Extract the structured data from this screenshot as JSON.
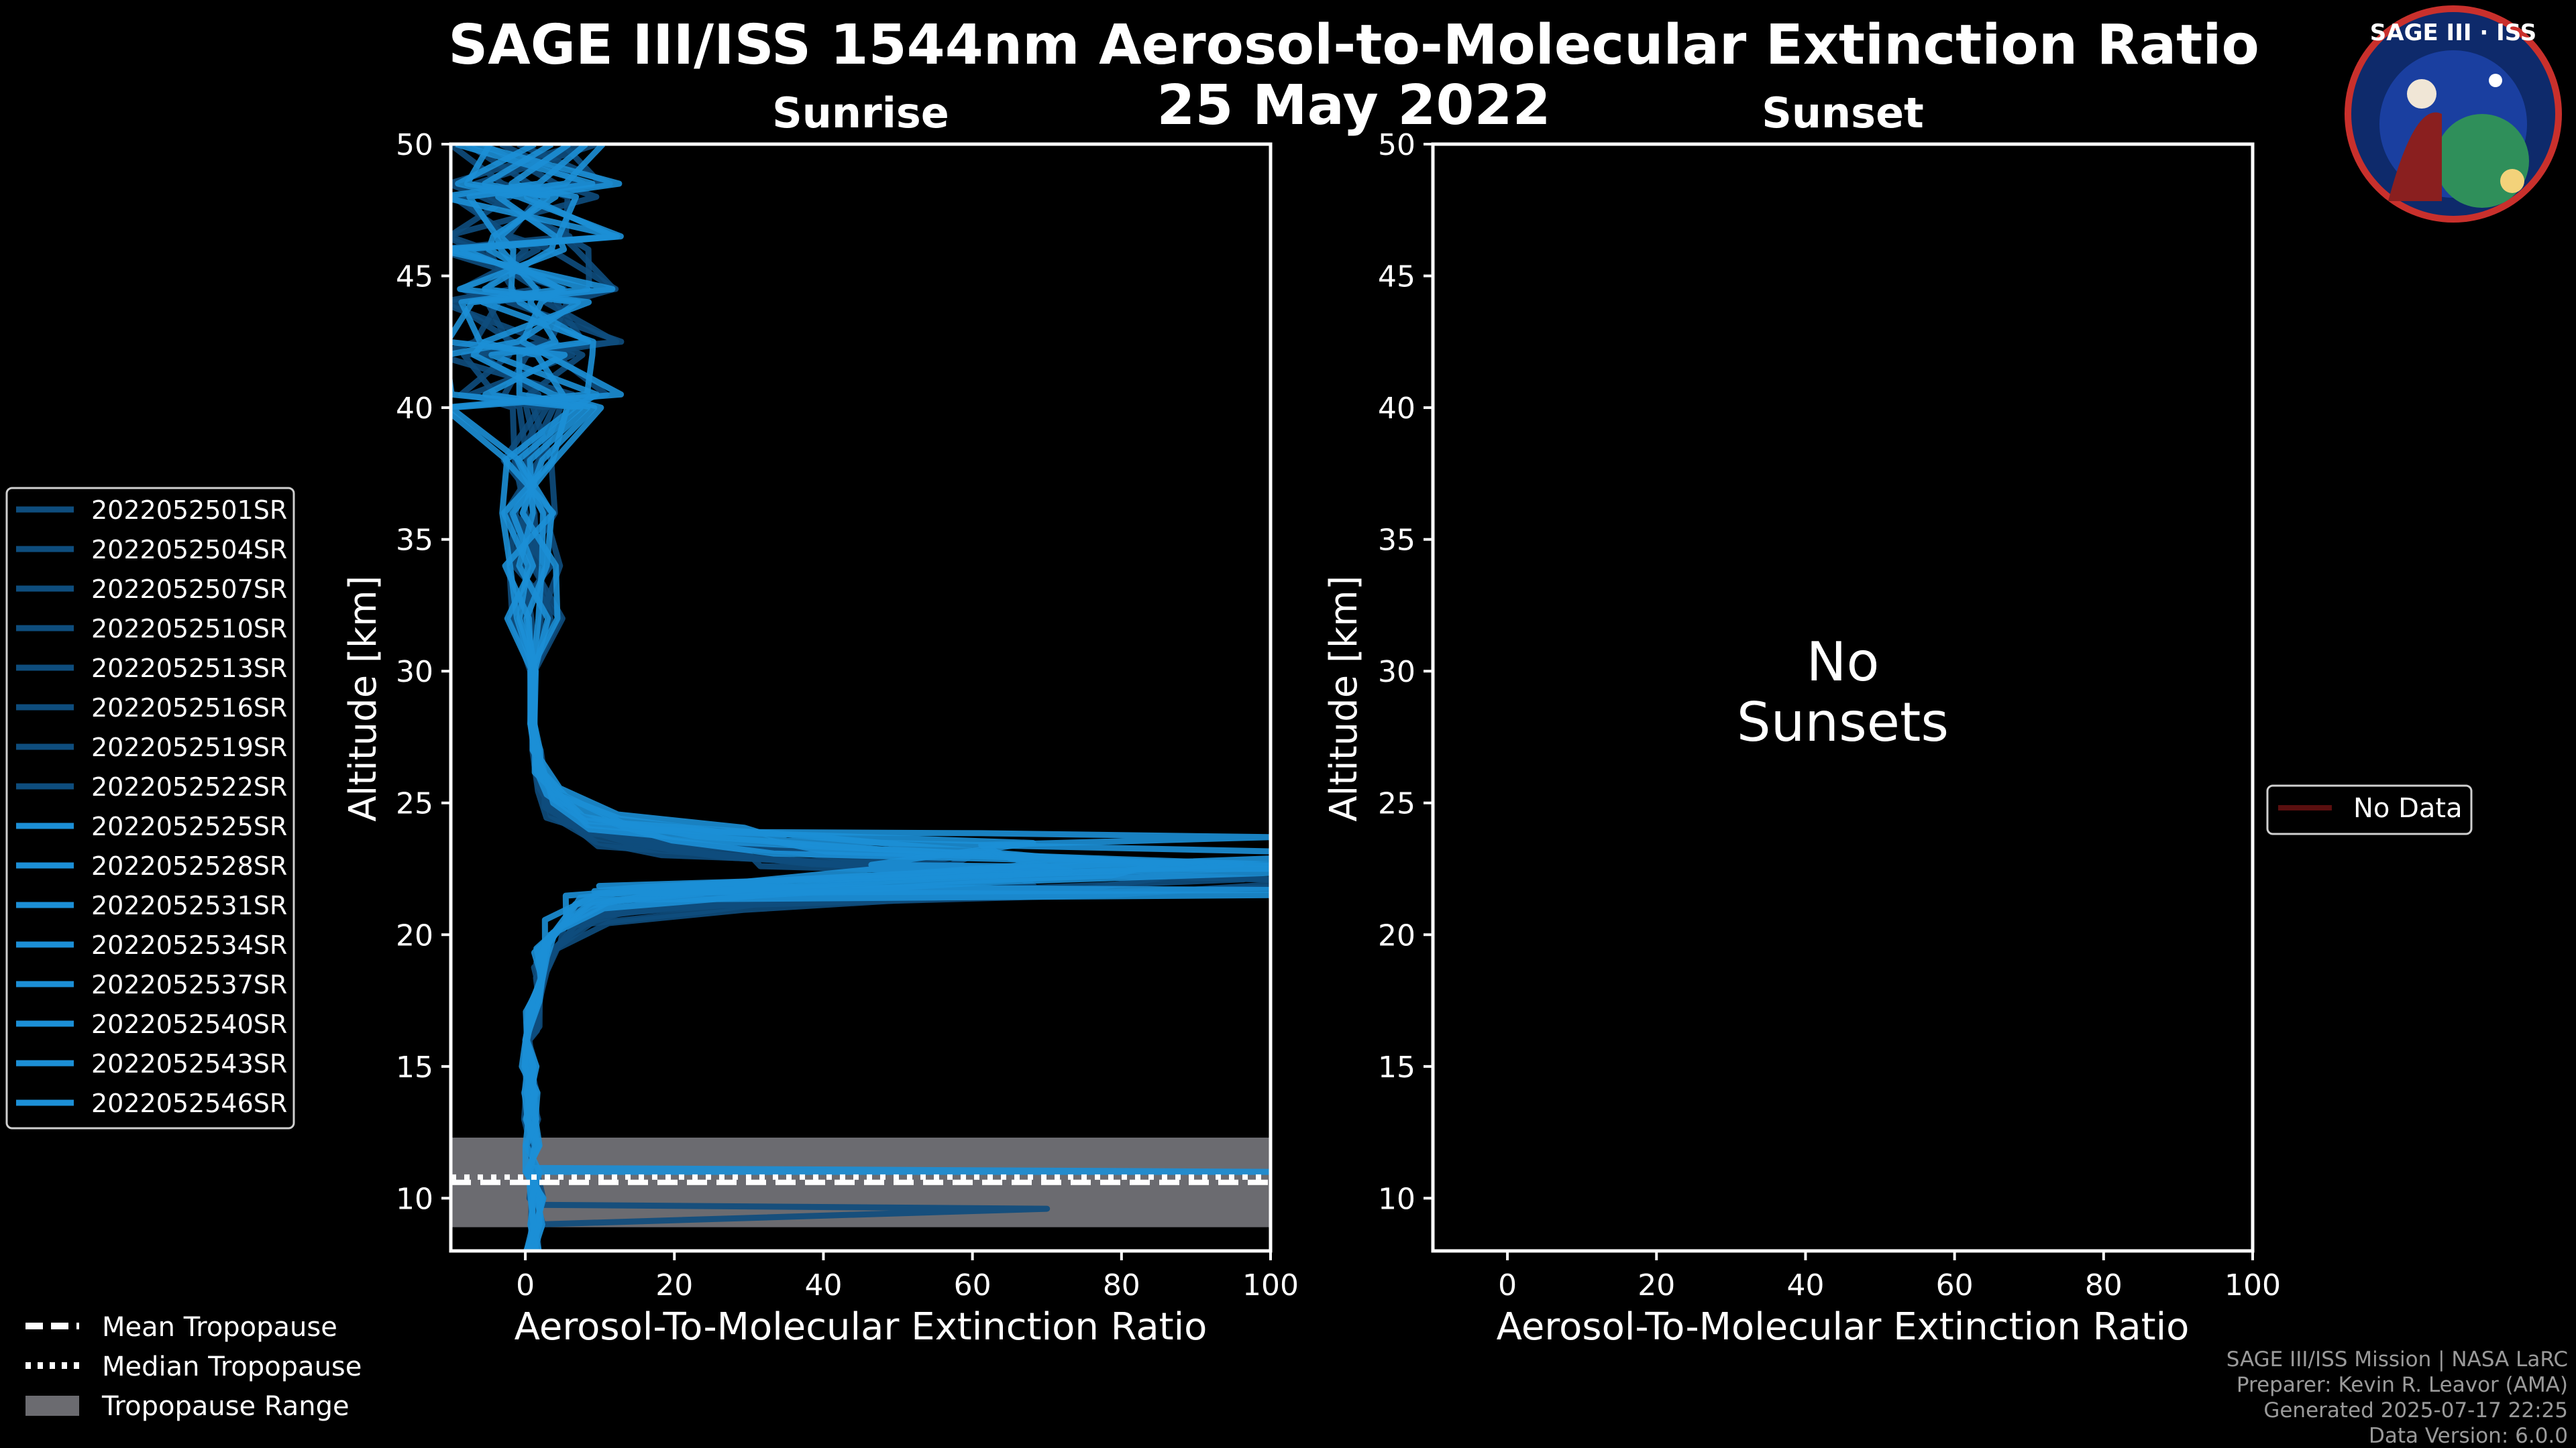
{
  "title_line1": "SAGE III/ISS 1544nm Aerosol-to-Molecular Extinction Ratio",
  "title_line2": "25 May 2022",
  "logo": {
    "line1": "SAGE III · ISS",
    "colors": {
      "ring": "#0e2a6b",
      "ring_edge": "#c9302c",
      "sky": "#1a3fa0",
      "earth": "#2f8f5a"
    }
  },
  "colors": {
    "series": "#1c8fd6",
    "series_dark": "#0d3f66",
    "tropo_range": "#6b6b70",
    "nodata": "#5a0f0f",
    "axis": "#ffffff"
  },
  "chart_data": [
    {
      "type": "line",
      "panel": "sunrise",
      "title": "Sunrise",
      "xlabel": "Aerosol-To-Molecular Extinction Ratio",
      "ylabel": "Altitude [km]",
      "xlim": [
        -10,
        100
      ],
      "ylim": [
        8,
        50
      ],
      "xticks": [
        "0",
        "20",
        "40",
        "60",
        "80",
        "100"
      ],
      "yticks": [
        "10",
        "15",
        "20",
        "25",
        "30",
        "35",
        "40",
        "45",
        "50"
      ],
      "tropopause": {
        "mean_km": 10.6,
        "median_km": 10.8,
        "range_km": [
          8.9,
          12.3
        ]
      },
      "series_names": [
        "2022052501SR",
        "2022052504SR",
        "2022052507SR",
        "2022052510SR",
        "2022052513SR",
        "2022052516SR",
        "2022052519SR",
        "2022052522SR",
        "2022052525SR",
        "2022052528SR",
        "2022052531SR",
        "2022052534SR",
        "2022052537SR",
        "2022052540SR",
        "2022052543SR",
        "2022052546SR"
      ],
      "profile_template": {
        "altitude_km": [
          8,
          9,
          10,
          11,
          12,
          13,
          14,
          15,
          16,
          17,
          18,
          19,
          20,
          21,
          21.5,
          22,
          22.5,
          23,
          23.5,
          24,
          25,
          26,
          27,
          28,
          30,
          32,
          34,
          36,
          38,
          40,
          42,
          44,
          46,
          48,
          50
        ],
        "ratio": [
          1,
          1.5,
          1.5,
          1,
          1,
          0.8,
          0.8,
          0.5,
          0.5,
          1,
          1.5,
          2,
          4,
          8,
          25,
          60,
          90,
          50,
          25,
          12,
          4,
          2,
          1.5,
          1,
          1,
          1,
          1,
          0.5,
          0,
          0,
          -1,
          -1,
          -1,
          -1,
          0
        ]
      },
      "spikes": [
        {
          "series": 15,
          "altitude_km": 21.7,
          "ratio": 100
        },
        {
          "series": 14,
          "altitude_km": 22.5,
          "ratio": 100
        },
        {
          "series": 13,
          "altitude_km": 23.7,
          "ratio": 100
        },
        {
          "series": 12,
          "altitude_km": 21.5,
          "ratio": 100
        },
        {
          "series": 5,
          "altitude_km": 9.6,
          "ratio": 70
        },
        {
          "series": 9,
          "altitude_km": 11.0,
          "ratio": 100
        }
      ],
      "legend": [
        "Mean Tropopause",
        "Median Tropopause",
        "Tropopause Range"
      ]
    },
    {
      "type": "line",
      "panel": "sunset",
      "title": "Sunset",
      "xlabel": "Aerosol-To-Molecular Extinction Ratio",
      "ylabel": "Altitude [km]",
      "xlim": [
        -10,
        100
      ],
      "ylim": [
        8,
        50
      ],
      "xticks": [
        "0",
        "20",
        "40",
        "60",
        "80",
        "100"
      ],
      "yticks": [
        "10",
        "15",
        "20",
        "25",
        "30",
        "35",
        "40",
        "45",
        "50"
      ],
      "annotation": [
        "No",
        "Sunsets"
      ],
      "legend": [
        "No Data"
      ]
    }
  ],
  "footer": [
    "SAGE III/ISS Mission | NASA LaRC",
    "Preparer: Kevin R. Leavor (AMA)",
    "Generated 2025-07-17 22:25",
    "Data Version: 6.0.0"
  ]
}
